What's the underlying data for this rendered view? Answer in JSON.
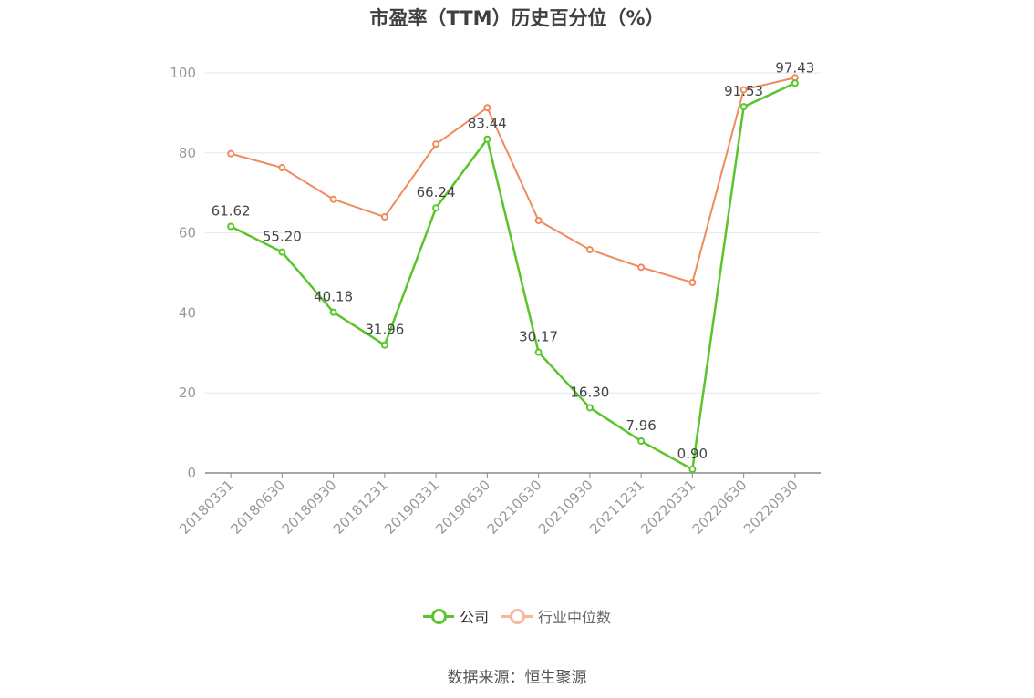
{
  "chart_data": {
    "type": "line",
    "title": "市盈率（TTM）历史百分位（%）",
    "categories": [
      "20180331",
      "20180630",
      "20180930",
      "20181231",
      "20190331",
      "20190630",
      "20210630",
      "20210930",
      "20211231",
      "20220331",
      "20220630",
      "20220930"
    ],
    "series": [
      {
        "name": "公司",
        "color": "#5ac52a",
        "values": [
          61.62,
          55.2,
          40.18,
          31.96,
          66.24,
          83.44,
          30.17,
          16.3,
          7.96,
          0.9,
          91.53,
          97.43
        ],
        "labels": [
          "61.62",
          "55.20",
          "40.18",
          "31.96",
          "66.24",
          "83.44",
          "30.17",
          "16.30",
          "7.96",
          "0.90",
          "91.53",
          "97.43"
        ]
      },
      {
        "name": "行业中位数",
        "color": "#f08a5d",
        "values": [
          79.8,
          76.3,
          68.4,
          64.0,
          82.2,
          91.3,
          63.1,
          55.8,
          51.4,
          47.6,
          95.8,
          98.8
        ]
      }
    ],
    "ylim": [
      0,
      100
    ],
    "yticks": [
      "0",
      "20",
      "40",
      "60",
      "80",
      "100"
    ],
    "grid": true,
    "legend_position": "bottom"
  },
  "legend": [
    {
      "name": "公司",
      "color": "#5ac52a",
      "text_color": "#333333"
    },
    {
      "name": "行业中位数",
      "color": "#f9b79a",
      "text_color": "#666666"
    }
  ],
  "source": "数据来源：恒生聚源"
}
